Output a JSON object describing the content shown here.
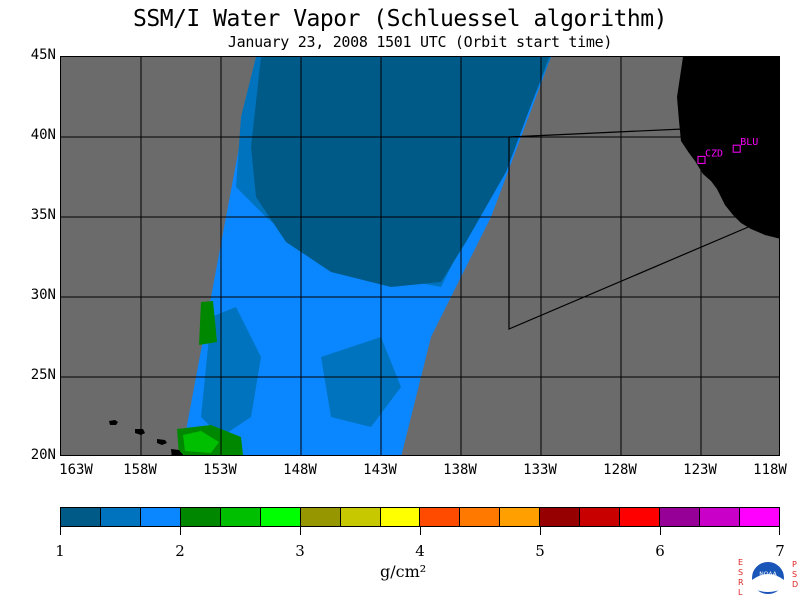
{
  "title": "SSM/I Water Vapor (Schluessel algorithm)",
  "subtitle": "January 23, 2008  1501 UTC  (Orbit start time)",
  "map": {
    "lat_labels": [
      "45N",
      "40N",
      "35N",
      "30N",
      "25N",
      "20N"
    ],
    "lon_labels": [
      "163W",
      "158W",
      "153W",
      "148W",
      "143W",
      "138W",
      "133W",
      "128W",
      "123W",
      "118W"
    ],
    "stations": [
      {
        "name": "CZD",
        "lon": -123.0,
        "lat": 38.6
      },
      {
        "name": "BLU",
        "lon": -120.8,
        "lat": 39.3
      }
    ],
    "colors": {
      "land": "#000000",
      "no_data": "#6b6b6b",
      "station": "#ff00ff"
    }
  },
  "colorbar": {
    "tick_labels": [
      "1",
      "2",
      "3",
      "4",
      "5",
      "6",
      "7"
    ],
    "unit_label": "g/cm²",
    "colors": [
      "#005a87",
      "#0073be",
      "#0a87ff",
      "#008700",
      "#00be00",
      "#00ff00",
      "#969600",
      "#c8c800",
      "#ffff00",
      "#ff4b00",
      "#ff7800",
      "#ffa000",
      "#960000",
      "#c80000",
      "#ff0000",
      "#960096",
      "#c800c8",
      "#ff00ff"
    ]
  },
  "logo": {
    "left_letters": "ESRL",
    "right_letters": "PSD",
    "center_text": "NOAA"
  }
}
